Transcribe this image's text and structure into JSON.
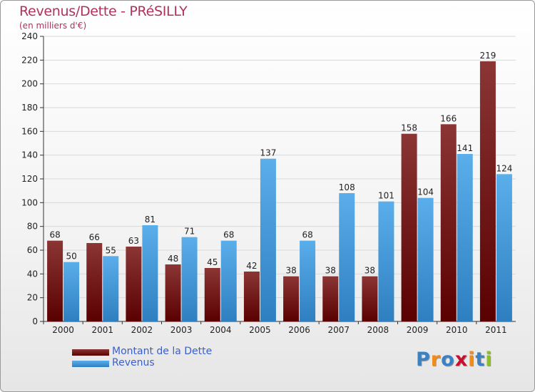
{
  "title": "Revenus/Dette - PRéSILLY",
  "subtitle": "(en milliers d'€)",
  "logo": {
    "text": "Proxiti",
    "letters": [
      {
        "ch": "P",
        "color": "#3b82c4"
      },
      {
        "ch": "r",
        "color": "#f08c1a"
      },
      {
        "ch": "o",
        "color": "#3b82c4"
      },
      {
        "ch": "x",
        "color": "#c8102e"
      },
      {
        "ch": "i",
        "color": "#f08c1a"
      },
      {
        "ch": "t",
        "color": "#3b82c4"
      },
      {
        "ch": "i",
        "color": "#8cbf26"
      }
    ]
  },
  "chart_data": {
    "type": "bar",
    "title": "Revenus/Dette - PRéSILLY",
    "subtitle": "(en milliers d'€)",
    "xlabel": "",
    "ylabel": "",
    "ylim": [
      0,
      240
    ],
    "yticks": [
      0,
      20,
      40,
      60,
      80,
      100,
      120,
      140,
      160,
      180,
      200,
      220,
      240
    ],
    "grid": true,
    "legend_position": "bottom-left",
    "categories": [
      "2000",
      "2001",
      "2002",
      "2003",
      "2004",
      "2005",
      "2006",
      "2007",
      "2008",
      "2009",
      "2010",
      "2011"
    ],
    "series": [
      {
        "name": "Montant de la Dette",
        "key": "dette",
        "color_top": "#8b3535",
        "color_bottom": "#5a0000",
        "values": [
          68,
          66,
          63,
          48,
          45,
          42,
          38,
          38,
          38,
          158,
          166,
          219
        ]
      },
      {
        "name": "Revenus",
        "key": "revenus",
        "color_top": "#5aaeea",
        "color_bottom": "#2e7fc0",
        "values": [
          50,
          55,
          81,
          71,
          68,
          137,
          68,
          108,
          101,
          104,
          141,
          124
        ]
      }
    ]
  }
}
